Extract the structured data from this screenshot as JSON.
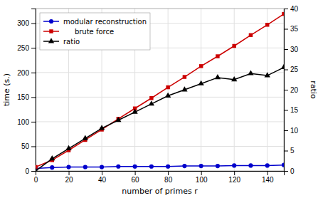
{
  "chart_data": {
    "type": "line",
    "x": [
      0,
      10,
      20,
      30,
      40,
      50,
      60,
      70,
      80,
      90,
      100,
      110,
      120,
      130,
      140,
      150
    ],
    "series": [
      {
        "name": "modular reconstruction",
        "color": "#0000cc",
        "marker": "circle",
        "values": [
          5,
          7,
          8,
          8,
          8,
          9,
          9,
          9,
          9,
          10,
          10,
          10,
          11,
          11,
          11,
          12
        ]
      },
      {
        "name": "     brute force",
        "color": "#cc0000",
        "marker": "square",
        "values": [
          8,
          22,
          42,
          63,
          84,
          106,
          127,
          148,
          170,
          191,
          213,
          233,
          254,
          276,
          297,
          319
        ]
      },
      {
        "name": "ratio",
        "color": "#000000",
        "marker": "triangle",
        "axis": "y2",
        "values": [
          0.0,
          3.0,
          5.5,
          8.0,
          10.5,
          12.5,
          14.5,
          16.5,
          18.5,
          20.0,
          21.5,
          23.0,
          22.5,
          24.0,
          23.5,
          25.5
        ]
      }
    ],
    "x_label": "number of primes r",
    "y_label": "time (s.)",
    "y2_label": "ratio",
    "xlim": [
      0,
      150
    ],
    "ylim": [
      0,
      330
    ],
    "y2lim": [
      0,
      40
    ],
    "xticks": [
      0,
      20,
      40,
      60,
      80,
      100,
      120,
      140
    ],
    "yticks": [
      0,
      50,
      100,
      150,
      200,
      250,
      300
    ],
    "y2ticks": [
      0,
      5,
      10,
      15,
      20,
      25,
      30,
      35,
      40
    ],
    "grid": true,
    "legend": "upper left"
  }
}
